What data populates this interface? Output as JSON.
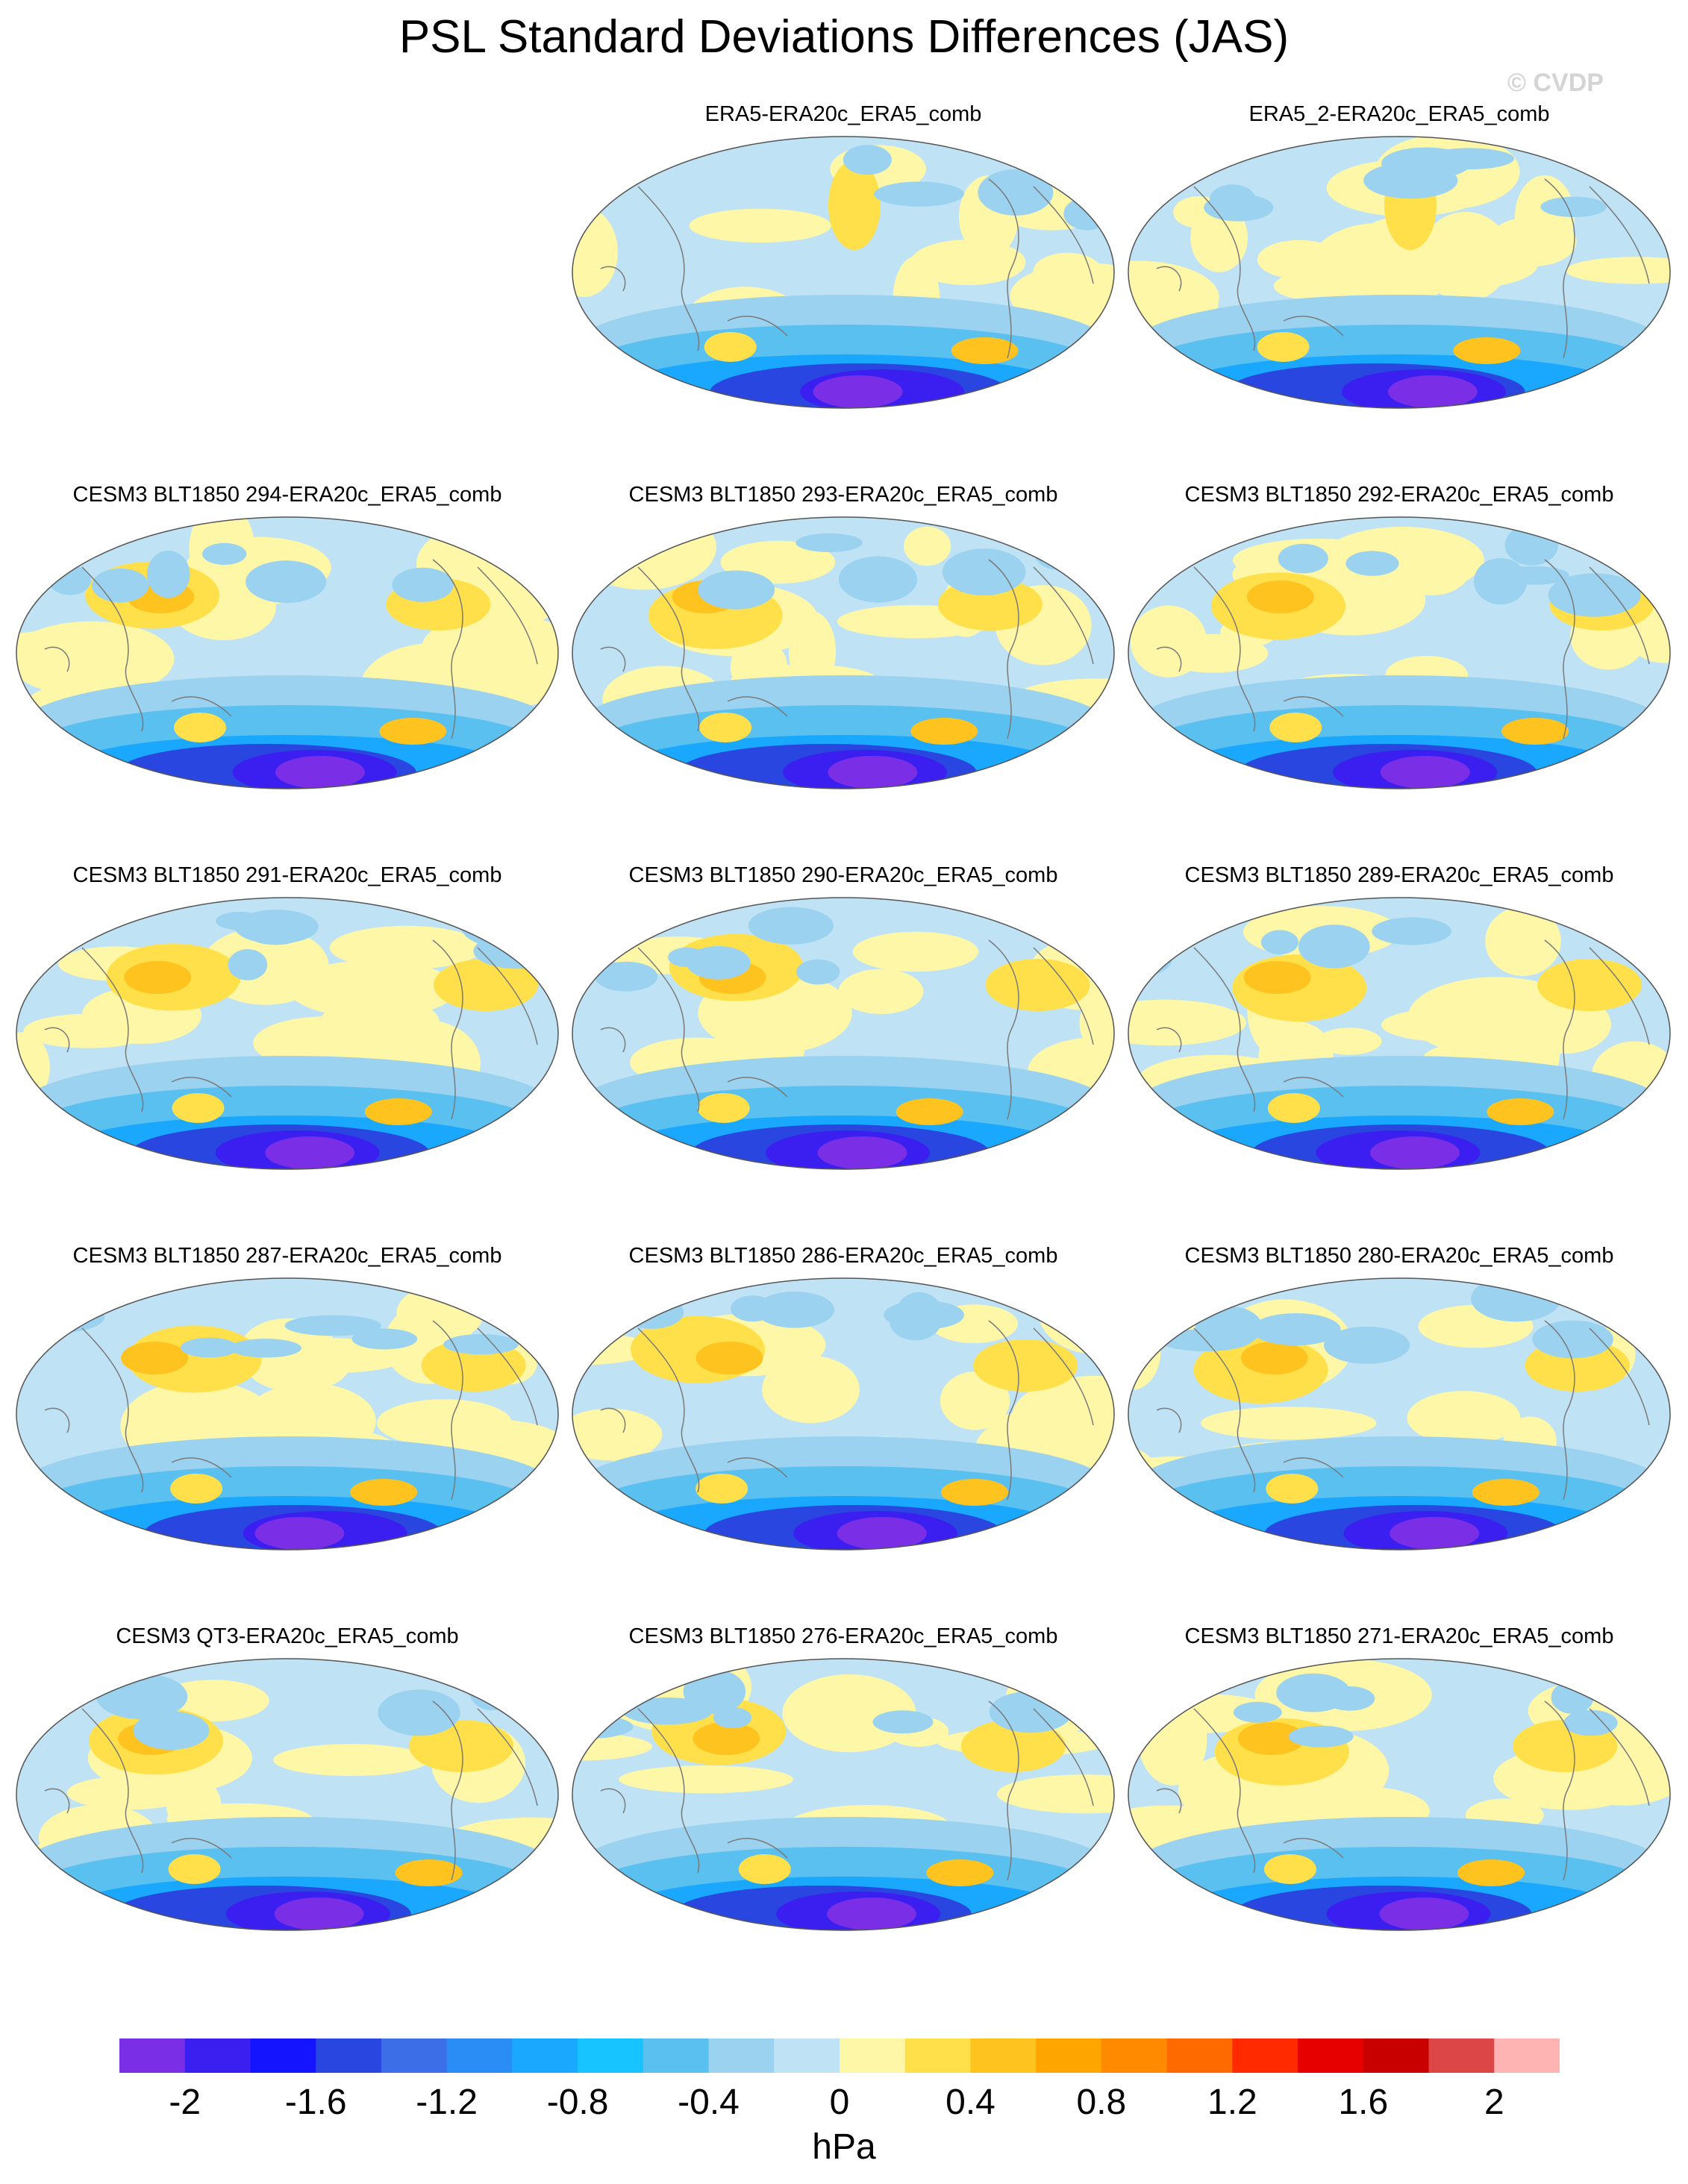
{
  "title": "PSL Standard Deviations Differences (JAS)",
  "watermark": "© CVDP",
  "units": "hPa",
  "colorbar": {
    "levels": [
      "-2",
      "-1.6",
      "-1.2",
      "-0.8",
      "-0.4",
      "0",
      "0.4",
      "0.8",
      "1.2",
      "1.6",
      "2"
    ],
    "colors": [
      "#7a2ee6",
      "#3b1ef0",
      "#1414ff",
      "#2a46e0",
      "#3c6ee8",
      "#2a8cf5",
      "#1aa8ff",
      "#17c4ff",
      "#5ac0f0",
      "#9ad2f0",
      "#bfe3f5",
      "#fff7a8",
      "#ffe04a",
      "#ffc31f",
      "#ffa500",
      "#ff8a00",
      "#ff6a00",
      "#ff2a00",
      "#e60000",
      "#c80000",
      "#dc4646",
      "#ffb4b4"
    ]
  },
  "panels": [
    {
      "title": "ERA5-ERA20c_ERA5_comb"
    },
    {
      "title": "ERA5_2-ERA20c_ERA5_comb"
    },
    {
      "title": "CESM3 BLT1850 294-ERA20c_ERA5_comb"
    },
    {
      "title": "CESM3 BLT1850 293-ERA20c_ERA5_comb"
    },
    {
      "title": "CESM3 BLT1850 292-ERA20c_ERA5_comb"
    },
    {
      "title": "CESM3 BLT1850 291-ERA20c_ERA5_comb"
    },
    {
      "title": "CESM3 BLT1850 290-ERA20c_ERA5_comb"
    },
    {
      "title": "CESM3 BLT1850 289-ERA20c_ERA5_comb"
    },
    {
      "title": "CESM3 BLT1850 287-ERA20c_ERA5_comb"
    },
    {
      "title": "CESM3 BLT1850 286-ERA20c_ERA5_comb"
    },
    {
      "title": "CESM3 BLT1850 280-ERA20c_ERA5_comb"
    },
    {
      "title": "CESM3 QT3-ERA20c_ERA5_comb"
    },
    {
      "title": "CESM3 BLT1850 276-ERA20c_ERA5_comb"
    },
    {
      "title": "CESM3 BLT1850 271-ERA20c_ERA5_comb"
    }
  ]
}
